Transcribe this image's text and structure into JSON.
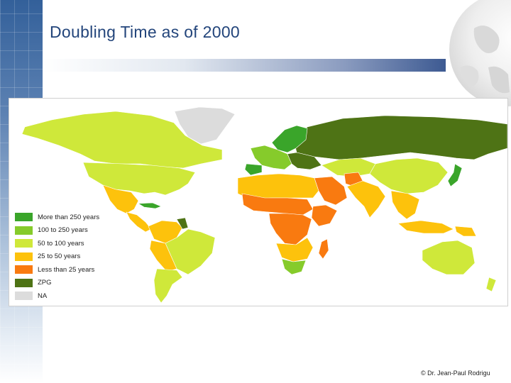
{
  "slide": {
    "title": "Doubling Time as of 2000",
    "credit": "© Dr. Jean-Paul Rodrigu"
  },
  "legend": [
    {
      "label": "More than 250 years",
      "color": "#3aa52a"
    },
    {
      "label": "100 to 250 years",
      "color": "#86cb2b"
    },
    {
      "label": "50 to 100 years",
      "color": "#cfe83a"
    },
    {
      "label": "25 to 50 years",
      "color": "#fdc20c"
    },
    {
      "label": "Less than 25 years",
      "color": "#f97a10"
    },
    {
      "label": "ZPG",
      "color": "#4e7315"
    },
    {
      "label": "NA",
      "color": "#dcdcdc"
    }
  ],
  "regions": [
    {
      "name": "Greenland",
      "cls": "NA"
    },
    {
      "name": "Canada",
      "cls": "50 to 100 years"
    },
    {
      "name": "United States",
      "cls": "50 to 100 years"
    },
    {
      "name": "Mexico",
      "cls": "25 to 50 years"
    },
    {
      "name": "Central America",
      "cls": "25 to 50 years"
    },
    {
      "name": "Cuba",
      "cls": "More than 250 years"
    },
    {
      "name": "Venezuela-Colombia",
      "cls": "25 to 50 years"
    },
    {
      "name": "Guyana",
      "cls": "ZPG"
    },
    {
      "name": "Brazil",
      "cls": "50 to 100 years"
    },
    {
      "name": "Peru-Bolivia",
      "cls": "25 to 50 years"
    },
    {
      "name": "Argentina-Chile",
      "cls": "50 to 100 years"
    },
    {
      "name": "Russia",
      "cls": "ZPG"
    },
    {
      "name": "Scandinavia",
      "cls": "More than 250 years"
    },
    {
      "name": "Western Europe",
      "cls": "100 to 250 years"
    },
    {
      "name": "Eastern Europe",
      "cls": "ZPG"
    },
    {
      "name": "Iberia",
      "cls": "More than 250 years"
    },
    {
      "name": "North Africa",
      "cls": "25 to 50 years"
    },
    {
      "name": "Sahel",
      "cls": "Less than 25 years"
    },
    {
      "name": "Saudi Arabia",
      "cls": "Less than 25 years"
    },
    {
      "name": "Horn of Africa",
      "cls": "Less than 25 years"
    },
    {
      "name": "Central Africa",
      "cls": "Less than 25 years"
    },
    {
      "name": "Southern Africa",
      "cls": "25 to 50 years"
    },
    {
      "name": "South Africa",
      "cls": "100 to 250 years"
    },
    {
      "name": "Madagascar",
      "cls": "Less than 25 years"
    },
    {
      "name": "Kazakhstan",
      "cls": "50 to 100 years"
    },
    {
      "name": "Afghanistan",
      "cls": "Less than 25 years"
    },
    {
      "name": "India",
      "cls": "25 to 50 years"
    },
    {
      "name": "China",
      "cls": "50 to 100 years"
    },
    {
      "name": "Japan",
      "cls": "More than 250 years"
    },
    {
      "name": "Southeast Asia",
      "cls": "25 to 50 years"
    },
    {
      "name": "Indonesia",
      "cls": "25 to 50 years"
    },
    {
      "name": "Papua New Guinea",
      "cls": "25 to 50 years"
    },
    {
      "name": "Australia",
      "cls": "50 to 100 years"
    },
    {
      "name": "New Zealand",
      "cls": "50 to 100 years"
    }
  ]
}
